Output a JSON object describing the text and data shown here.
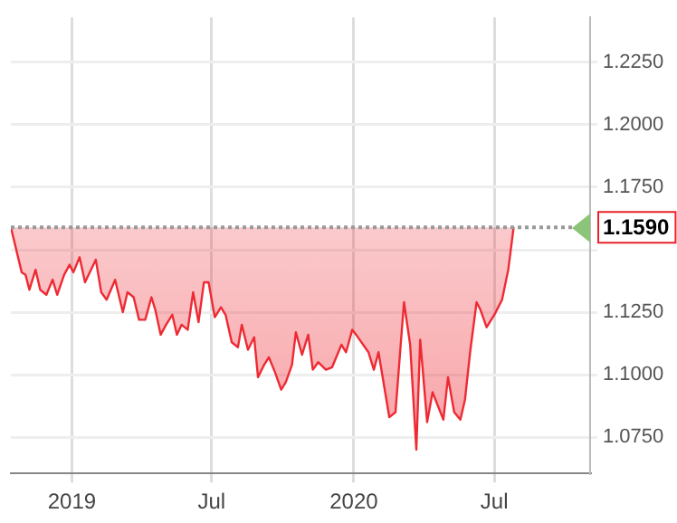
{
  "chart_data": {
    "type": "area",
    "x": [
      "2018-10-14",
      "2018-10-28",
      "2018-11-02",
      "2018-11-07",
      "2018-11-15",
      "2018-11-21",
      "2018-11-29",
      "2018-12-07",
      "2018-12-13",
      "2018-12-22",
      "2018-12-29",
      "2019-01-03",
      "2019-01-11",
      "2019-01-18",
      "2019-02-01",
      "2019-02-08",
      "2019-02-15",
      "2019-02-26",
      "2019-03-08",
      "2019-03-14",
      "2019-03-22",
      "2019-03-29",
      "2019-04-06",
      "2019-04-14",
      "2019-04-19",
      "2019-04-26",
      "2019-05-03",
      "2019-05-11",
      "2019-05-17",
      "2019-05-23",
      "2019-05-31",
      "2019-06-07",
      "2019-06-14",
      "2019-06-21",
      "2019-06-27",
      "2019-07-05",
      "2019-07-13",
      "2019-07-19",
      "2019-07-27",
      "2019-08-04",
      "2019-08-09",
      "2019-08-17",
      "2019-08-25",
      "2019-08-30",
      "2019-09-07",
      "2019-09-13",
      "2019-09-21",
      "2019-09-29",
      "2019-10-05",
      "2019-10-13",
      "2019-10-18",
      "2019-10-26",
      "2019-11-03",
      "2019-11-09",
      "2019-11-16",
      "2019-11-26",
      "2019-12-04",
      "2019-12-16",
      "2019-12-22",
      "2019-12-30",
      "2020-01-04",
      "2020-01-20",
      "2020-01-27",
      "2020-02-02",
      "2020-02-16",
      "2020-02-24",
      "2020-03-06",
      "2020-03-14",
      "2020-03-22",
      "2020-03-27",
      "2020-04-05",
      "2020-04-12",
      "2020-04-26",
      "2020-05-02",
      "2020-05-10",
      "2020-05-18",
      "2020-05-24",
      "2020-05-31",
      "2020-06-08",
      "2020-06-13",
      "2020-06-21",
      "2020-07-01",
      "2020-07-11",
      "2020-07-19",
      "2020-07-26"
    ],
    "series": [
      {
        "color": "#ee2a33",
        "values": [
          1.159,
          1.141,
          1.14,
          1.134,
          1.142,
          1.134,
          1.132,
          1.138,
          1.132,
          1.14,
          1.144,
          1.141,
          1.147,
          1.137,
          1.146,
          1.133,
          1.13,
          1.138,
          1.125,
          1.133,
          1.131,
          1.122,
          1.122,
          1.131,
          1.126,
          1.116,
          1.12,
          1.124,
          1.116,
          1.12,
          1.118,
          1.133,
          1.121,
          1.137,
          1.137,
          1.123,
          1.127,
          1.124,
          1.113,
          1.111,
          1.12,
          1.11,
          1.115,
          1.099,
          1.104,
          1.107,
          1.101,
          1.094,
          1.097,
          1.104,
          1.117,
          1.108,
          1.116,
          1.102,
          1.105,
          1.102,
          1.103,
          1.112,
          1.109,
          1.118,
          1.116,
          1.109,
          1.102,
          1.109,
          1.083,
          1.085,
          1.129,
          1.112,
          1.07,
          1.114,
          1.081,
          1.093,
          1.082,
          1.099,
          1.085,
          1.082,
          1.09,
          1.11,
          1.129,
          1.126,
          1.119,
          1.124,
          1.13,
          1.142,
          1.159
        ]
      }
    ],
    "xlim": [
      "2018-10-14",
      "2020-11-02"
    ],
    "xticks": [
      {
        "value": "2019-01-01",
        "label": "2019"
      },
      {
        "value": "2019-07-01",
        "label": "Jul"
      },
      {
        "value": "2020-01-01",
        "label": "2020"
      },
      {
        "value": "2020-07-01",
        "label": "Jul"
      }
    ],
    "ylim": [
      1.0605,
      1.243
    ],
    "yticks": [
      {
        "value": 1.075,
        "label": "1.0750"
      },
      {
        "value": 1.1,
        "label": "1.1000"
      },
      {
        "value": 1.125,
        "label": "1.1250"
      },
      {
        "value": 1.15,
        "label": null
      },
      {
        "value": 1.175,
        "label": "1.1750"
      },
      {
        "value": 1.2,
        "label": "1.2000"
      },
      {
        "value": 1.225,
        "label": "1.2250"
      }
    ],
    "ref_lines": [
      {
        "axis": "y",
        "value": 1.159,
        "label": "1.1590",
        "color": "#999999",
        "line_style": "dotted"
      }
    ],
    "grid": true,
    "legend": false,
    "marker": "none",
    "line_style": "solid"
  }
}
